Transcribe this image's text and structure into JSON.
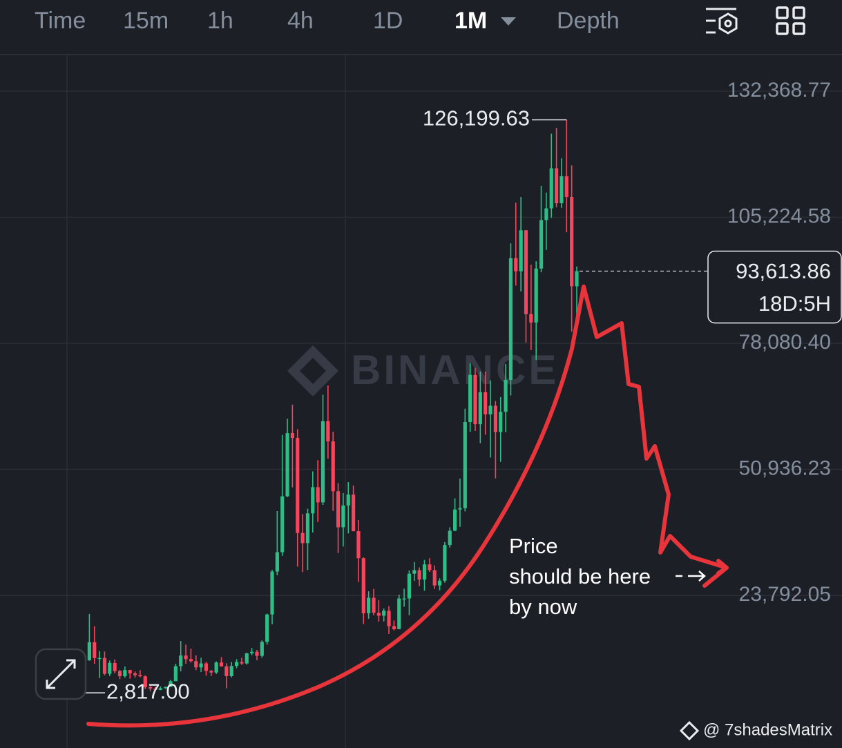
{
  "tabs": [
    "Time",
    "15m",
    "1h",
    "4h",
    "1D",
    "1M",
    "Depth"
  ],
  "watermark": "BINANCE",
  "credit": "@ 7shadesMatrix",
  "annotation": [
    "Price",
    "should be here",
    "by now"
  ],
  "chart_data": {
    "type": "candlestick",
    "ylim": [
      -7128,
      140099
    ],
    "yticks": [
      {
        "value": 132368.77,
        "label": "132,368.77"
      },
      {
        "value": 105224.58,
        "label": "105,224.58"
      },
      {
        "value": 78080.4,
        "label": "78,080.40"
      },
      {
        "value": 50936.23,
        "label": "50,936.23"
      },
      {
        "value": 23792.05,
        "label": "23,792.05"
      }
    ],
    "grid": true,
    "up_color": "#2ebd85",
    "down_color": "#f6465d",
    "high_marker": {
      "value": 126199.63,
      "label": "126,199.63"
    },
    "low_marker": {
      "value": 2817.0,
      "label": "2,817.00"
    },
    "last_price": {
      "value": 93613.86,
      "label": "93,613.86",
      "countdown": "18D:5H"
    },
    "open": [
      4261,
      4690,
      4378,
      6463,
      9838,
      13716,
      10285,
      10326,
      6923,
      9246,
      7495,
      6391,
      7730,
      7011,
      6626,
      6371,
      4041,
      3742,
      3458,
      3813,
      4103,
      5320,
      8555,
      10854,
      10085,
      9630,
      8294,
      9150,
      7546,
      7195,
      9352,
      8523,
      6410,
      8625,
      9448,
      9138,
      11336,
      11650,
      10777,
      13791,
      19695,
      28923,
      33092,
      45135,
      58740,
      57694,
      37253,
      35045,
      41461,
      47100,
      43824,
      61300,
      56950,
      46216,
      38466,
      43160,
      45510,
      37630,
      31801,
      19942,
      23293,
      20050,
      19423,
      20491,
      17164,
      16542,
      23125,
      23141,
      28465,
      29233,
      27210,
      30472,
      29232,
      25941,
      26963,
      34639,
      37724,
      42284,
      42580,
      61131,
      71281,
      60672,
      67540,
      62772,
      64628,
      58974,
      63327,
      70215,
      96407,
      93576,
      102429,
      84350,
      82550,
      94172,
      104591,
      107135,
      115764,
      108246,
      114048,
      109608,
      90360
    ],
    "high": [
      4745,
      4939,
      6470,
      11300,
      19798,
      17176,
      11786,
      11710,
      9765,
      10020,
      7760,
      8507,
      7760,
      7410,
      7680,
      6550,
      4310,
      4140,
      4198,
      4140,
      5600,
      9075,
      13970,
      13200,
      12325,
      10905,
      10370,
      9505,
      7750,
      9578,
      10500,
      9190,
      9460,
      10067,
      10380,
      11444,
      12468,
      12067,
      14100,
      19863,
      29300,
      41950,
      58352,
      61845,
      64854,
      59592,
      41330,
      42448,
      50500,
      52920,
      67000,
      69000,
      59054,
      47990,
      45821,
      48189,
      47444,
      40023,
      31982,
      24668,
      25211,
      22799,
      20988,
      21480,
      18387,
      23960,
      25250,
      29184,
      31000,
      29820,
      31431,
      31804,
      30244,
      27483,
      35280,
      38450,
      44700,
      48970,
      64000,
      73777,
      72797,
      71979,
      71997,
      70079,
      65660,
      66498,
      73620,
      99588,
      108353,
      109588,
      102500,
      95000,
      95758,
      111980,
      110530,
      123218,
      124474,
      117900,
      126199.63,
      116400,
      94600
    ],
    "low": [
      3400,
      2817,
      4110,
      5325,
      9722,
      9035,
      6000,
      6600,
      6430,
      7034,
      5755,
      6070,
      5880,
      6100,
      6200,
      3652,
      3156,
      3350,
      3370,
      3690,
      4066,
      5320,
      7450,
      9070,
      9320,
      7710,
      7300,
      6515,
      6435,
      6870,
      8450,
      3782,
      6150,
      8117,
      8833,
      8893,
      10936,
      9825,
      10375,
      13195,
      17572,
      28130,
      32296,
      44950,
      47044,
      30000,
      28805,
      29278,
      37332,
      39600,
      43283,
      53256,
      42000,
      32917,
      34322,
      37155,
      37578,
      26700,
      17622,
      18782,
      19520,
      18125,
      18190,
      15476,
      16256,
      16500,
      21351,
      19549,
      26942,
      25811,
      24800,
      28861,
      25166,
      24901,
      26538,
      34097,
      37615,
      38555,
      41884,
      59005,
      59191,
      56552,
      58402,
      53485,
      49000,
      52550,
      58946,
      66835,
      90500,
      89256,
      78258,
      76606,
      74508,
      93377,
      98200,
      105100,
      107350,
      107255,
      102000,
      80600,
      83800
    ],
    "close": [
      4724,
      4378,
      6463,
      9838,
      13716,
      10285,
      10326,
      6923,
      9246,
      7495,
      6391,
      7730,
      7011,
      6626,
      6371,
      4041,
      3742,
      3458,
      3813,
      4103,
      5320,
      8555,
      10854,
      10085,
      9630,
      8294,
      9150,
      7546,
      7195,
      9352,
      8523,
      6410,
      8625,
      9448,
      9138,
      11336,
      11650,
      10777,
      13791,
      19695,
      28923,
      33092,
      45135,
      58740,
      57694,
      37253,
      35045,
      41461,
      47100,
      43824,
      61300,
      56950,
      46216,
      38466,
      43160,
      45510,
      37630,
      31801,
      19942,
      23293,
      20050,
      19423,
      20491,
      17164,
      16542,
      23125,
      23141,
      28465,
      29233,
      27210,
      30472,
      29232,
      25941,
      26963,
      34639,
      37724,
      42284,
      42580,
      61131,
      71281,
      60672,
      67540,
      62772,
      64628,
      58974,
      63327,
      70215,
      96407,
      93576,
      102429,
      84350,
      82550,
      94172,
      104591,
      107135,
      115764,
      108246,
      114048,
      109608,
      90360,
      93613.86
    ]
  }
}
